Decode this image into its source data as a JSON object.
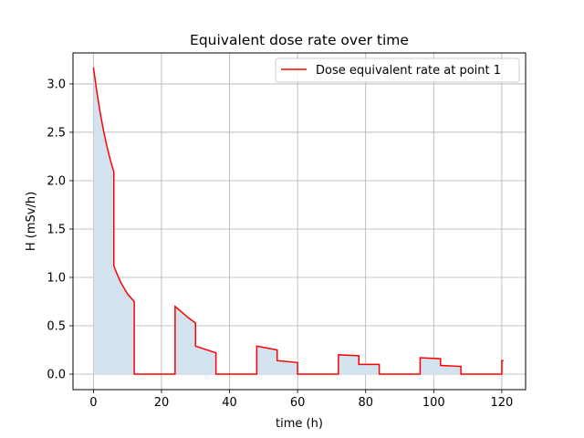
{
  "chart_data": {
    "type": "line",
    "title": "Equivalent dose rate over time",
    "xlabel": "time (h)",
    "ylabel": "H (mSv/h)",
    "xlim": [
      -6,
      127
    ],
    "ylim": [
      -0.16,
      3.32
    ],
    "xticks": [
      0,
      20,
      40,
      60,
      80,
      100,
      120
    ],
    "yticks": [
      0.0,
      0.5,
      1.0,
      1.5,
      2.0,
      2.5,
      3.0
    ],
    "xtick_labels": [
      "0",
      "20",
      "40",
      "60",
      "80",
      "100",
      "120"
    ],
    "ytick_labels": [
      "0.0",
      "0.5",
      "1.0",
      "1.5",
      "2.0",
      "2.5",
      "3.0"
    ],
    "grid": true,
    "legend_position": "top-right",
    "fill_under": true,
    "colors": {
      "line": "#ff0000",
      "fill": "#d3e2ef",
      "grid": "#b0b0b0",
      "legend_border": "#cccccc"
    },
    "series": [
      {
        "name": "Dose equivalent rate at point 1",
        "x": [
          0,
          1,
          2,
          3,
          4,
          5,
          6,
          6,
          7,
          8,
          9,
          10,
          11,
          12,
          12,
          24,
          24,
          26,
          28,
          30,
          30,
          36,
          36,
          48,
          48,
          54,
          54,
          60,
          60,
          72,
          72,
          78,
          78,
          84,
          84,
          96,
          96,
          102,
          102,
          108,
          108,
          120,
          120,
          120.5
        ],
        "y": [
          3.17,
          2.92,
          2.7,
          2.51,
          2.35,
          2.21,
          2.09,
          1.12,
          1.03,
          0.95,
          0.89,
          0.83,
          0.79,
          0.75,
          0.0,
          0.0,
          0.7,
          0.64,
          0.58,
          0.53,
          0.29,
          0.22,
          0.0,
          0.0,
          0.29,
          0.25,
          0.14,
          0.12,
          0.0,
          0.0,
          0.2,
          0.19,
          0.1,
          0.1,
          0.0,
          0.0,
          0.17,
          0.16,
          0.09,
          0.08,
          0.0,
          0.0,
          0.14,
          0.14
        ]
      }
    ]
  }
}
